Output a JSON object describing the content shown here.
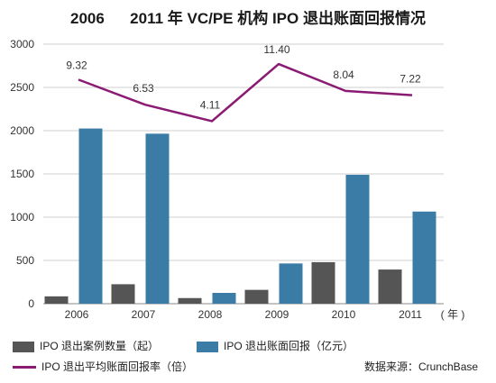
{
  "chart_data": {
    "type": "bar",
    "title": "2006      2011 年 VC/PE 机构 IPO 退出账面回报情况",
    "categories": [
      "2006",
      "2007",
      "2008",
      "2009",
      "2010",
      "2011"
    ],
    "x_unit_label": "( 年 )",
    "y_ticks": [
      "0",
      "500",
      "1000",
      "1500",
      "2000",
      "2500",
      "3000"
    ],
    "ylim": [
      0,
      3000
    ],
    "grid": true,
    "series": [
      {
        "name": "IPO 退出案例数量（起）",
        "kind": "bar",
        "color": "#555555",
        "values": [
          85,
          225,
          65,
          160,
          480,
          395
        ]
      },
      {
        "name": "IPO 退出账面回报（亿元）",
        "kind": "bar",
        "color": "#3a7ca5",
        "values": [
          2025,
          1965,
          125,
          465,
          1490,
          1065
        ]
      },
      {
        "name": "IPO 退出平均账面回报率（倍）",
        "kind": "line",
        "color": "#8b1a73",
        "values": [
          9.32,
          6.53,
          4.11,
          11.4,
          8.04,
          7.22
        ],
        "labels": [
          "9.32",
          "6.53",
          "4.11",
          "11.40",
          "8.04",
          "7.22"
        ],
        "plotted_on_primary_axis_as": [
          2590,
          2300,
          2110,
          2770,
          2460,
          2410
        ]
      }
    ],
    "legend_placement": "bottom",
    "source": "数据来源：CrunchBase"
  }
}
